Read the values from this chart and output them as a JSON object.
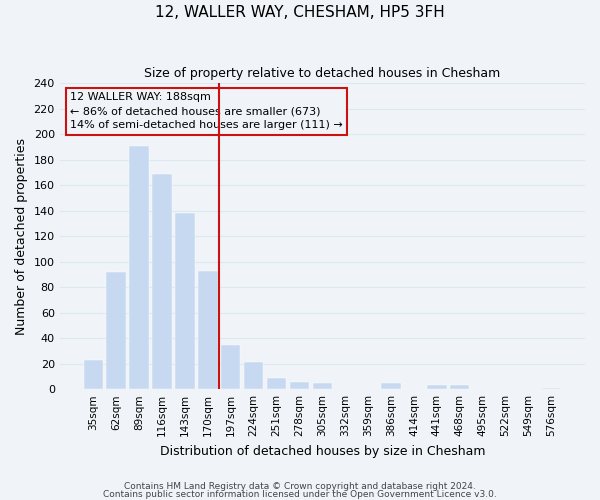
{
  "title": "12, WALLER WAY, CHESHAM, HP5 3FH",
  "subtitle": "Size of property relative to detached houses in Chesham",
  "xlabel": "Distribution of detached houses by size in Chesham",
  "ylabel": "Number of detached properties",
  "bar_labels": [
    "35sqm",
    "62sqm",
    "89sqm",
    "116sqm",
    "143sqm",
    "170sqm",
    "197sqm",
    "224sqm",
    "251sqm",
    "278sqm",
    "305sqm",
    "332sqm",
    "359sqm",
    "386sqm",
    "414sqm",
    "441sqm",
    "468sqm",
    "495sqm",
    "522sqm",
    "549sqm",
    "576sqm"
  ],
  "bar_values": [
    23,
    92,
    191,
    169,
    138,
    93,
    35,
    21,
    9,
    6,
    5,
    0,
    0,
    5,
    0,
    3,
    3,
    0,
    0,
    0,
    1
  ],
  "bar_color_default": "#c6d9f0",
  "bar_color_highlight": "#c6d9f0",
  "highlight_index": 6,
  "ylim": [
    0,
    240
  ],
  "yticks": [
    0,
    20,
    40,
    60,
    80,
    100,
    120,
    140,
    160,
    180,
    200,
    220,
    240
  ],
  "annotation_line1": "12 WALLER WAY: 188sqm",
  "annotation_line2": "← 86% of detached houses are smaller (673)",
  "annotation_line3": "14% of semi-detached houses are larger (111) →",
  "footer1": "Contains HM Land Registry data © Crown copyright and database right 2024.",
  "footer2": "Contains public sector information licensed under the Open Government Licence v3.0.",
  "grid_color": "#dce8f0",
  "background_color": "#f0f4f8",
  "red_line_color": "#cc1111",
  "annotation_box_edge": "#cc1111",
  "title_fontsize": 11,
  "subtitle_fontsize": 9,
  "xlabel_fontsize": 9,
  "ylabel_fontsize": 9,
  "tick_fontsize": 8,
  "xtick_fontsize": 7.5,
  "footer_fontsize": 6.5,
  "ann_fontsize": 8
}
